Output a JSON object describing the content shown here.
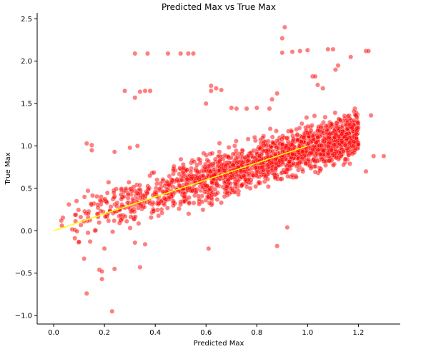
{
  "chart_data": {
    "type": "scatter",
    "title": "Predicted Max vs True Max",
    "xlabel": "Predicted Max",
    "ylabel": "True Max",
    "xlim": [
      -0.065,
      1.365
    ],
    "ylim": [
      -1.1,
      2.57
    ],
    "xticks": [
      0.0,
      0.2,
      0.4,
      0.6,
      0.8,
      1.0,
      1.2
    ],
    "xtick_labels": [
      "0.0",
      "0.2",
      "0.4",
      "0.6",
      "0.8",
      "1.0",
      "1.2"
    ],
    "yticks": [
      -1.0,
      -0.5,
      0.0,
      0.5,
      1.0,
      1.5,
      2.0,
      2.5
    ],
    "ytick_labels": [
      "−1.0",
      "−0.5",
      "0.0",
      "0.5",
      "1.0",
      "1.5",
      "2.0",
      "2.5"
    ],
    "grid": false,
    "legend": "none",
    "spines": [
      "left",
      "bottom"
    ],
    "point_color": "#ff0000",
    "point_edge_color": "#ffffff",
    "point_opacity": 0.5,
    "line_color": "#ffff00",
    "series": [
      {
        "kind": "scatter-cloud",
        "count": 1800,
        "x_range": [
          0.02,
          1.2
        ],
        "trend_y": {
          "intercept": 0.05,
          "slope": 0.92
        },
        "y_spread": 0.13
      },
      {
        "kind": "scatter",
        "points": [
          [
            0.91,
            2.4
          ],
          [
            0.9,
            2.27
          ],
          [
            0.32,
            2.09
          ],
          [
            0.37,
            2.09
          ],
          [
            0.45,
            2.09
          ],
          [
            0.5,
            2.09
          ],
          [
            0.53,
            2.09
          ],
          [
            0.55,
            2.09
          ],
          [
            0.9,
            2.1
          ],
          [
            0.94,
            2.11
          ],
          [
            0.97,
            2.12
          ],
          [
            1.0,
            2.13
          ],
          [
            1.08,
            2.14
          ],
          [
            1.1,
            2.14
          ],
          [
            1.17,
            2.05
          ],
          [
            1.23,
            2.12
          ],
          [
            1.24,
            2.12
          ],
          [
            1.12,
            1.95
          ],
          [
            1.11,
            1.9
          ],
          [
            1.02,
            1.82
          ],
          [
            1.03,
            1.82
          ],
          [
            0.28,
            1.65
          ],
          [
            0.34,
            1.64
          ],
          [
            0.36,
            1.65
          ],
          [
            0.38,
            1.65
          ],
          [
            0.62,
            1.65
          ],
          [
            0.62,
            1.71
          ],
          [
            0.64,
            1.68
          ],
          [
            0.66,
            1.66
          ],
          [
            0.32,
            1.57
          ],
          [
            0.6,
            1.5
          ],
          [
            0.7,
            1.45
          ],
          [
            0.72,
            1.44
          ],
          [
            0.76,
            1.44
          ],
          [
            0.8,
            1.45
          ],
          [
            0.85,
            1.44
          ],
          [
            0.88,
            1.62
          ],
          [
            0.86,
            1.55
          ],
          [
            1.04,
            1.72
          ],
          [
            1.06,
            1.68
          ],
          [
            0.13,
            1.03
          ],
          [
            0.15,
            1.01
          ],
          [
            0.24,
            0.93
          ],
          [
            0.3,
            0.98
          ],
          [
            0.33,
            1.0
          ],
          [
            0.15,
            0.95
          ],
          [
            1.25,
            1.36
          ],
          [
            1.26,
            0.88
          ],
          [
            1.3,
            0.88
          ],
          [
            1.23,
            0.7
          ],
          [
            0.92,
            0.04
          ],
          [
            0.88,
            -0.18
          ],
          [
            0.61,
            -0.21
          ],
          [
            0.5,
            0.34
          ],
          [
            0.34,
            -0.43
          ],
          [
            0.12,
            -0.33
          ],
          [
            0.18,
            -0.46
          ],
          [
            0.19,
            -0.48
          ],
          [
            0.24,
            -0.45
          ],
          [
            0.19,
            -0.57
          ],
          [
            0.13,
            -0.74
          ],
          [
            0.23,
            -0.95
          ],
          [
            0.1,
            -0.13
          ],
          [
            0.2,
            -0.21
          ],
          [
            0.32,
            -0.14
          ],
          [
            0.36,
            -0.16
          ],
          [
            0.03,
            0.12
          ],
          [
            0.06,
            0.31
          ],
          [
            0.09,
            0.35
          ]
        ]
      }
    ],
    "trend_line": {
      "x": [
        0.0,
        1.0
      ],
      "y": [
        0.0,
        1.0
      ]
    }
  }
}
